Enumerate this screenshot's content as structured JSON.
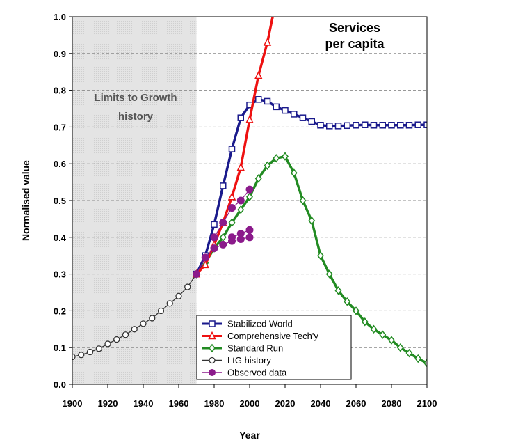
{
  "chart_data": {
    "type": "line",
    "title": [
      "Services",
      "per capita"
    ],
    "xlabel": "Year",
    "ylabel": "Normalised value",
    "xlim": [
      1900,
      2100
    ],
    "ylim": [
      0.0,
      1.0
    ],
    "x_ticks": [
      "1900",
      "1920",
      "1940",
      "1960",
      "1980",
      "2000",
      "2020",
      "2040",
      "2060",
      "2080",
      "2100"
    ],
    "y_ticks": [
      "0.0",
      "0.1",
      "0.2",
      "0.3",
      "0.4",
      "0.5",
      "0.6",
      "0.7",
      "0.8",
      "0.9",
      "1.0"
    ],
    "grid": "horizontal dashed",
    "shaded_region": {
      "x": [
        1900,
        1970
      ],
      "label": [
        "Limits to Growth",
        "history"
      ]
    },
    "legend_position": "bottom-center",
    "series": [
      {
        "name": "Stabilized World",
        "color": "#1a1a8c",
        "marker": "square",
        "x": [
          1970,
          1975,
          1980,
          1985,
          1990,
          1995,
          2000,
          2005,
          2010,
          2015,
          2020,
          2025,
          2030,
          2035,
          2040,
          2045,
          2050,
          2055,
          2060,
          2065,
          2070,
          2075,
          2080,
          2085,
          2090,
          2095,
          2100
        ],
        "y": [
          0.3,
          0.35,
          0.435,
          0.54,
          0.64,
          0.725,
          0.76,
          0.775,
          0.77,
          0.755,
          0.745,
          0.735,
          0.725,
          0.715,
          0.705,
          0.703,
          0.703,
          0.704,
          0.705,
          0.706,
          0.705,
          0.705,
          0.705,
          0.705,
          0.705,
          0.706,
          0.706
        ]
      },
      {
        "name": "Comprehensive Tech'y",
        "color": "#ee1111",
        "marker": "triangle",
        "x": [
          1970,
          1975,
          1980,
          1985,
          1990,
          1995,
          2000,
          2005,
          2010,
          2013
        ],
        "y": [
          0.3,
          0.325,
          0.38,
          0.44,
          0.51,
          0.59,
          0.72,
          0.84,
          0.93,
          1.0
        ]
      },
      {
        "name": "Standard Run",
        "color": "#228b22",
        "marker": "diamond",
        "x": [
          1970,
          1975,
          1980,
          1985,
          1990,
          1995,
          2000,
          2005,
          2010,
          2015,
          2020,
          2025,
          2030,
          2035,
          2040,
          2045,
          2050,
          2055,
          2060,
          2065,
          2070,
          2075,
          2080,
          2085,
          2090,
          2095,
          2100
        ],
        "y": [
          0.3,
          0.33,
          0.37,
          0.4,
          0.44,
          0.475,
          0.51,
          0.56,
          0.595,
          0.615,
          0.62,
          0.575,
          0.5,
          0.445,
          0.35,
          0.3,
          0.255,
          0.225,
          0.2,
          0.17,
          0.15,
          0.135,
          0.12,
          0.1,
          0.085,
          0.07,
          0.058
        ]
      },
      {
        "name": "LtG history",
        "color": "#333333",
        "marker": "circle-open",
        "x": [
          1900,
          1905,
          1910,
          1915,
          1920,
          1925,
          1930,
          1935,
          1940,
          1945,
          1950,
          1955,
          1960,
          1965,
          1970
        ],
        "y": [
          0.075,
          0.08,
          0.088,
          0.097,
          0.11,
          0.122,
          0.135,
          0.15,
          0.165,
          0.18,
          0.2,
          0.22,
          0.24,
          0.265,
          0.3
        ]
      },
      {
        "name": "Observed data",
        "color": "#8b1a8b",
        "marker": "circle-filled",
        "line": false,
        "x": [
          1970,
          1975,
          1980,
          1985,
          1990,
          1995,
          2000,
          1980,
          1985,
          1990,
          1995,
          2000
        ],
        "y": [
          0.3,
          0.345,
          0.37,
          0.38,
          0.39,
          0.395,
          0.4,
          0.4,
          0.44,
          0.48,
          0.5,
          0.53
        ],
        "x_lower": [
          1970,
          1975,
          1980,
          1985,
          1990,
          1995,
          2000
        ],
        "y_lower": [
          0.3,
          0.345,
          0.37,
          0.38,
          0.39,
          0.395,
          0.4
        ],
        "x_upper2": [
          1990,
          1995,
          2000
        ],
        "y_upper2": [
          0.4,
          0.41,
          0.42
        ],
        "x_upper": [
          1980,
          1985,
          1990,
          1995,
          2000
        ],
        "y_upper": [
          0.4,
          0.44,
          0.48,
          0.5,
          0.53
        ]
      }
    ]
  }
}
